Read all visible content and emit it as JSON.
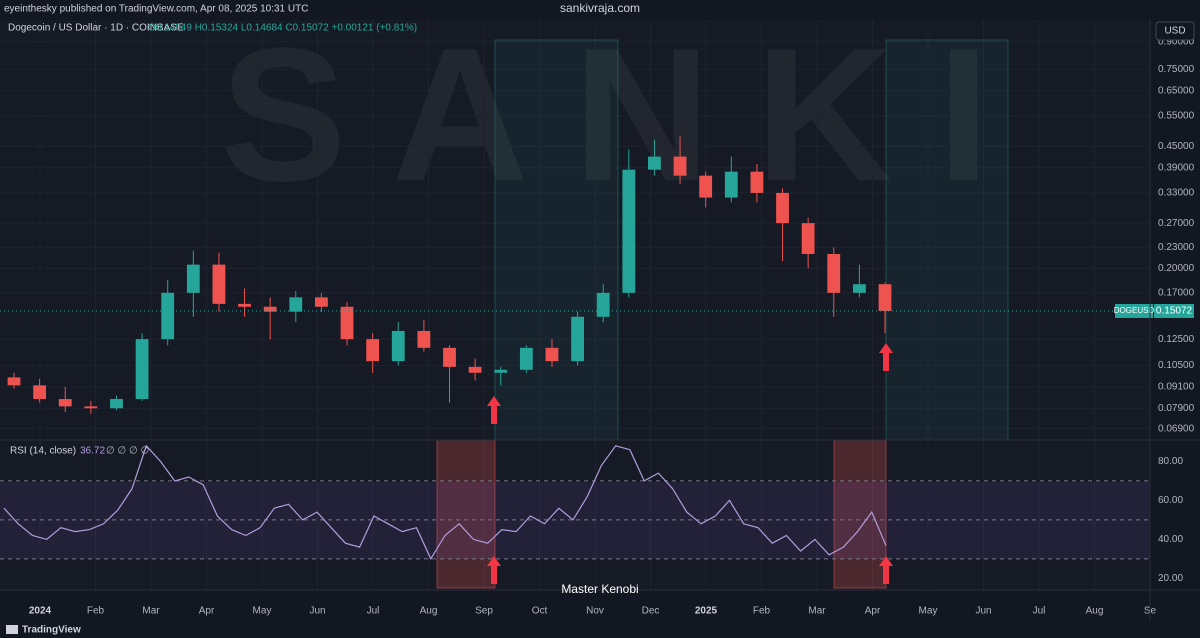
{
  "header": {
    "publisher": "eyeinthesky published on TradingView.com, Apr 08, 2025 10:31 UTC",
    "site": "sankivraja.com"
  },
  "chart_data": [
    {
      "type": "candlestick",
      "title": "Dogecoin / US Dollar · 1D · COINBASE",
      "ohlc_text": "O0.14949 H0.15324 L0.14684 C0.15072 +0.00121 (+0.81%)",
      "symbol": "DOGEUSD",
      "currency": "USD",
      "watermark": "SANKI",
      "open": [
        0.097,
        0.092,
        0.084,
        0.08,
        0.079,
        0.084,
        0.125,
        0.17,
        0.205,
        0.158,
        0.155,
        0.15,
        0.165,
        0.155,
        0.125,
        0.108,
        0.132,
        0.118,
        0.104,
        0.1,
        0.102,
        0.118,
        0.108,
        0.145,
        0.17,
        0.385,
        0.42,
        0.37,
        0.32,
        0.38,
        0.33,
        0.27,
        0.22,
        0.17,
        0.18
      ],
      "high": [
        0.1,
        0.096,
        0.091,
        0.083,
        0.086,
        0.13,
        0.185,
        0.225,
        0.222,
        0.175,
        0.165,
        0.172,
        0.17,
        0.16,
        0.13,
        0.14,
        0.142,
        0.12,
        0.11,
        0.104,
        0.12,
        0.125,
        0.15,
        0.18,
        0.44,
        0.47,
        0.48,
        0.38,
        0.42,
        0.4,
        0.34,
        0.28,
        0.23,
        0.205,
        0.182
      ],
      "low": [
        0.09,
        0.082,
        0.077,
        0.076,
        0.078,
        0.083,
        0.12,
        0.145,
        0.15,
        0.145,
        0.125,
        0.14,
        0.15,
        0.12,
        0.1,
        0.105,
        0.115,
        0.082,
        0.095,
        0.092,
        0.1,
        0.104,
        0.105,
        0.14,
        0.165,
        0.37,
        0.35,
        0.3,
        0.31,
        0.31,
        0.21,
        0.2,
        0.145,
        0.165,
        0.13
      ],
      "close": [
        0.092,
        0.084,
        0.08,
        0.079,
        0.084,
        0.125,
        0.17,
        0.205,
        0.158,
        0.155,
        0.15,
        0.165,
        0.155,
        0.125,
        0.108,
        0.132,
        0.118,
        0.104,
        0.1,
        0.102,
        0.118,
        0.108,
        0.145,
        0.17,
        0.385,
        0.42,
        0.37,
        0.32,
        0.38,
        0.33,
        0.27,
        0.22,
        0.17,
        0.18,
        0.15072
      ],
      "up_color": "#26a69a",
      "down_color": "#ef5350",
      "log_scale": true,
      "ylim": [
        0.064,
        1.04
      ],
      "yticks": [
        {
          "value": 0.069,
          "label": "0.06900"
        },
        {
          "value": 0.079,
          "label": "0.07900"
        },
        {
          "value": 0.091,
          "label": "0.09100"
        },
        {
          "value": 0.105,
          "label": "0.10500"
        },
        {
          "value": 0.125,
          "label": "0.12500"
        },
        {
          "value": 0.17,
          "label": "0.17000"
        },
        {
          "value": 0.2,
          "label": "0.20000"
        },
        {
          "value": 0.23,
          "label": "0.23000"
        },
        {
          "value": 0.27,
          "label": "0.27000"
        },
        {
          "value": 0.33,
          "label": "0.33000"
        },
        {
          "value": 0.39,
          "label": "0.39000"
        },
        {
          "value": 0.45,
          "label": "0.45000"
        },
        {
          "value": 0.55,
          "label": "0.55000"
        },
        {
          "value": 0.65,
          "label": "0.65000"
        },
        {
          "value": 0.75,
          "label": "0.75000"
        },
        {
          "value": 0.9,
          "label": "0.90000"
        }
      ],
      "xticks": [
        "2024",
        "Feb",
        "Mar",
        "Apr",
        "May",
        "Jun",
        "Jul",
        "Aug",
        "Sep",
        "Oct",
        "Nov",
        "Dec",
        "2025",
        "Feb",
        "Mar",
        "Apr",
        "May",
        "Jun",
        "Jul",
        "Aug",
        "Se"
      ],
      "grid": true
    },
    {
      "type": "line",
      "title": "RSI (14, close)",
      "extra": "∅ ∅ ∅ ∅",
      "color": "#b39ddb",
      "values": [
        56,
        48,
        42,
        40,
        46,
        44,
        45,
        48,
        55,
        66,
        88,
        80,
        70,
        72,
        68,
        52,
        45,
        42,
        46,
        56,
        58,
        50,
        54,
        46,
        38,
        36,
        52,
        48,
        44,
        46,
        30,
        42,
        48,
        40,
        38,
        45,
        44,
        52,
        48,
        56,
        50,
        62,
        78,
        88,
        86,
        70,
        74,
        66,
        54,
        48,
        52,
        60,
        48,
        46,
        38,
        42,
        34,
        40,
        32,
        36,
        44,
        54,
        36.72
      ],
      "ylim": [
        14,
        91
      ],
      "yticks": [
        {
          "value": 20,
          "label": "20.00"
        },
        {
          "value": 40,
          "label": "40.00"
        },
        {
          "value": 60,
          "label": "60.00"
        },
        {
          "value": 80,
          "label": "80.00"
        }
      ],
      "bands": [
        30,
        50,
        70
      ]
    }
  ],
  "annotation": "Master Kenobi",
  "footer": "TradingView"
}
